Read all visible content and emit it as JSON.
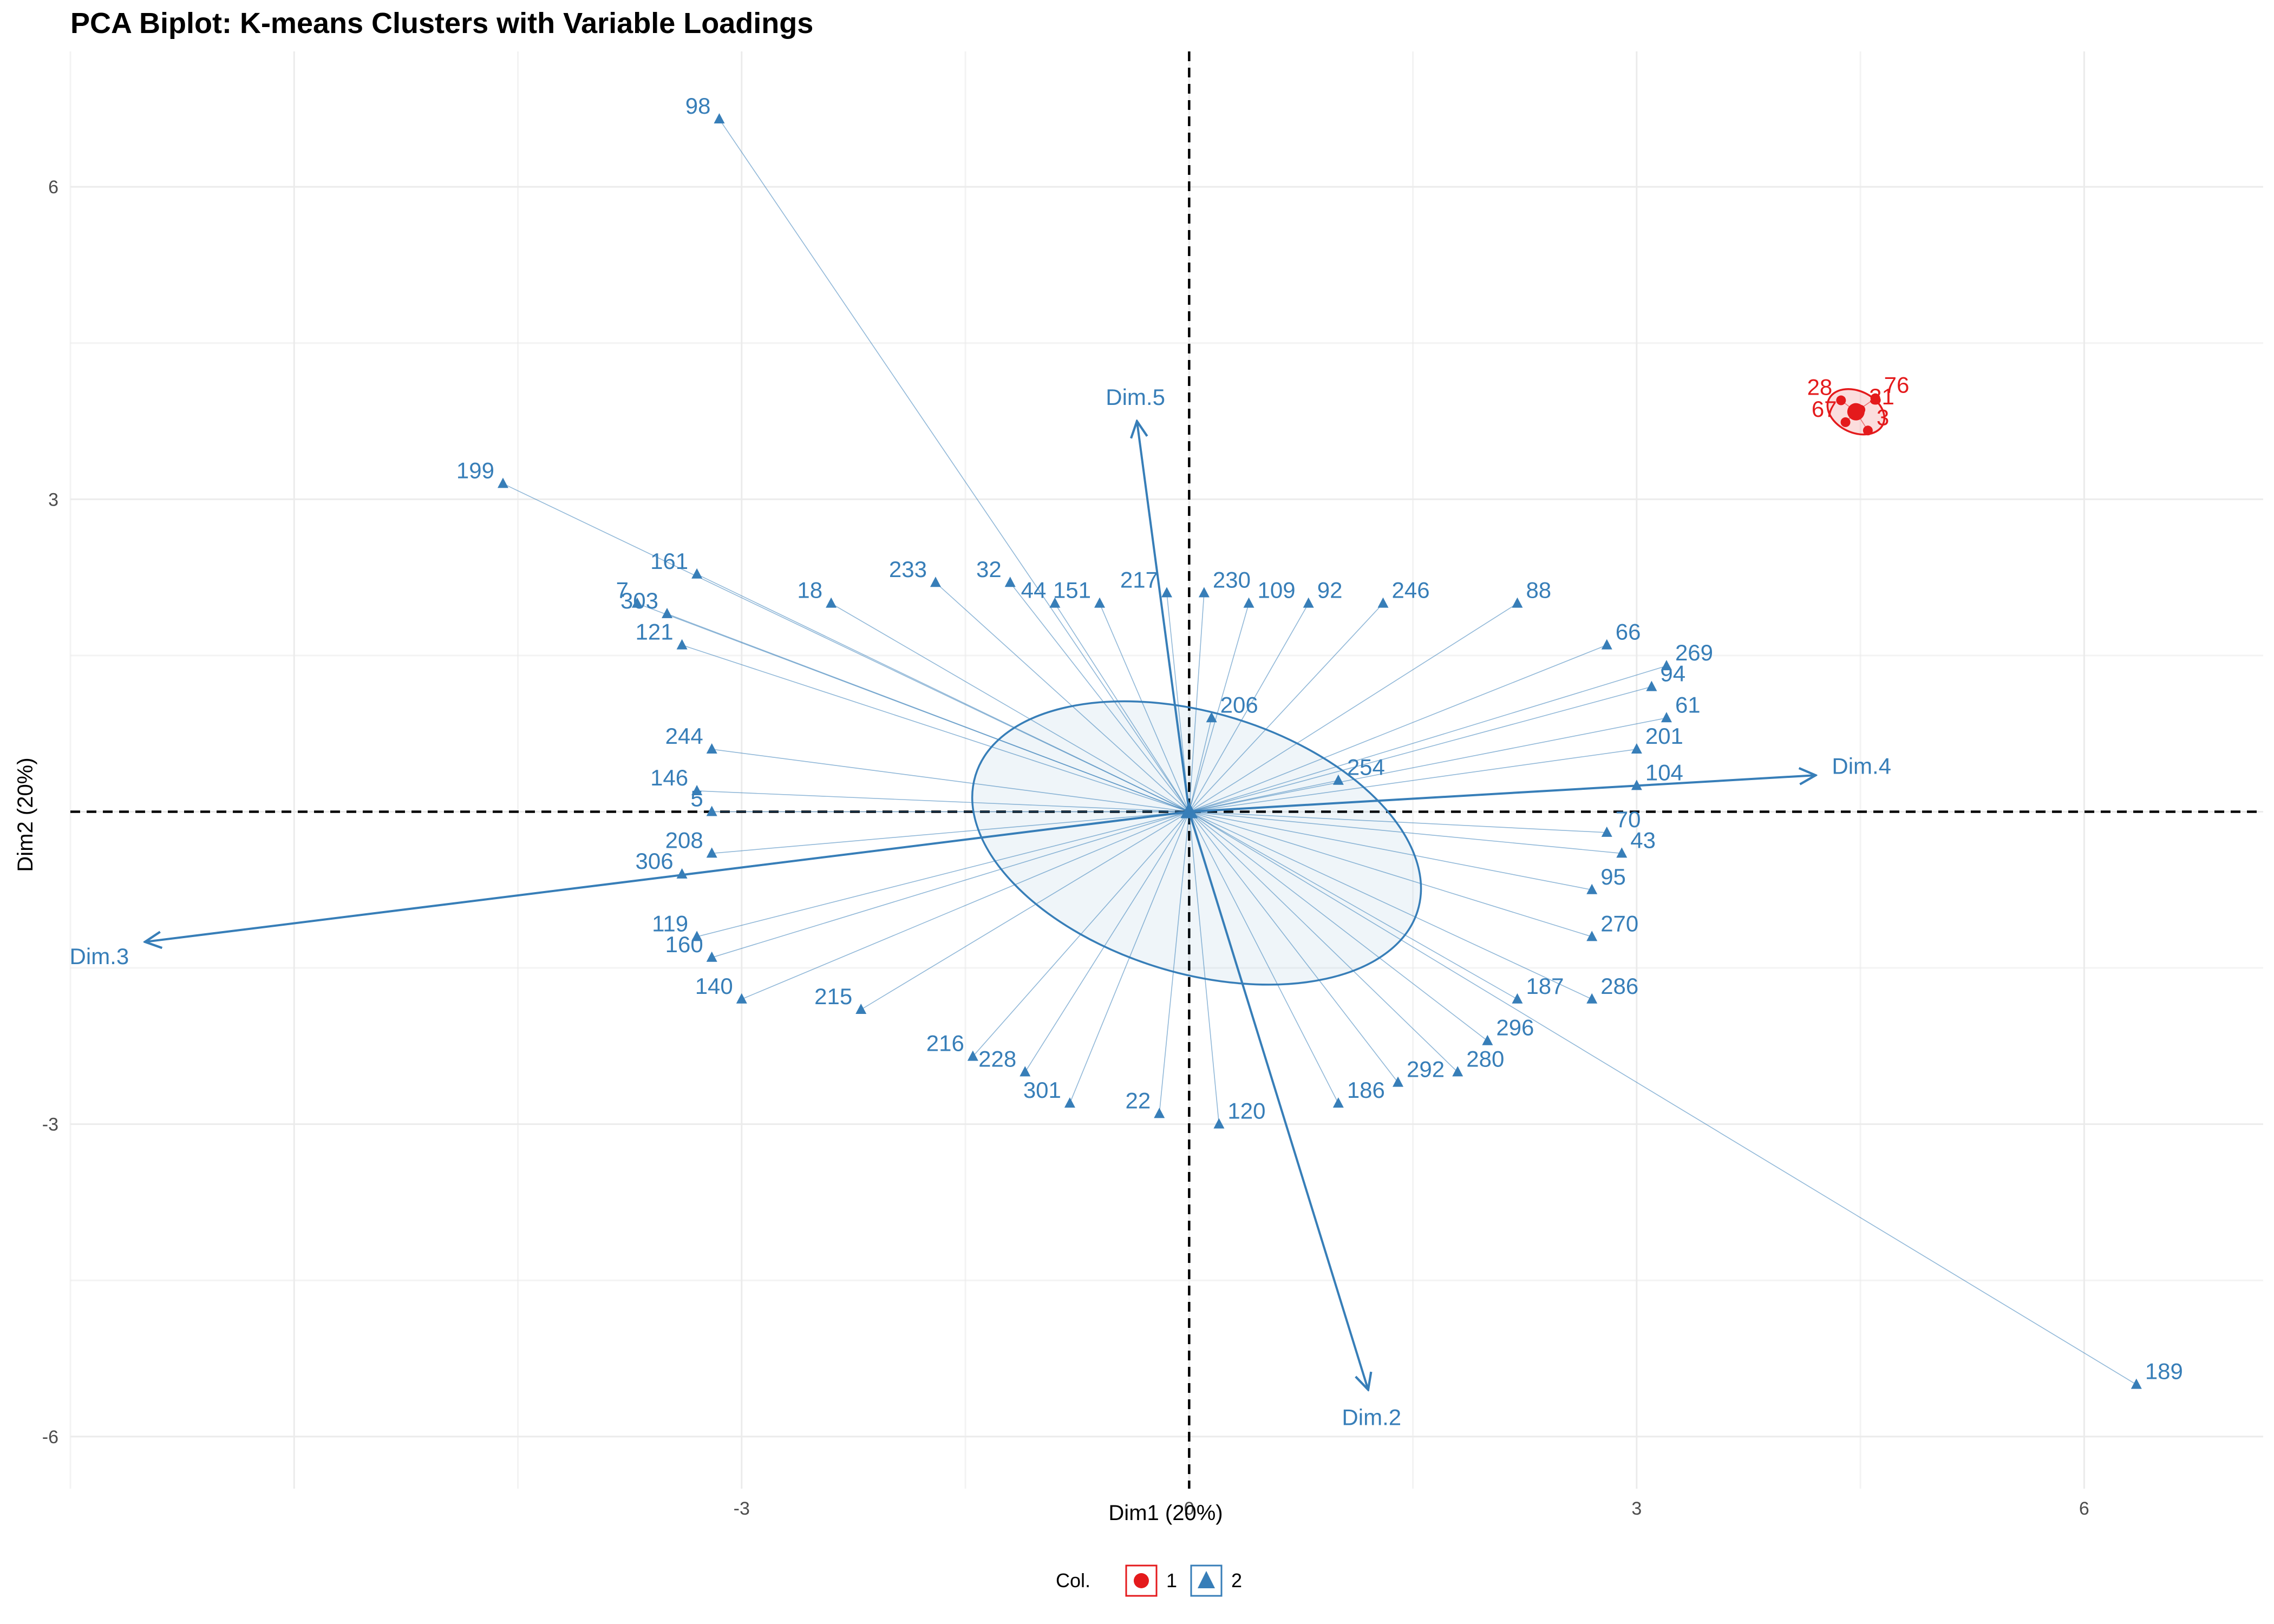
{
  "title": "PCA Biplot: K-means Clusters with Variable Loadings",
  "chart_data": {
    "type": "scatter",
    "title": "PCA Biplot: K-means Clusters with Variable Loadings",
    "xlabel": "Dim1 (20%)",
    "ylabel": "Dim2 (20%)",
    "xlim": [
      -7.5,
      7.2
    ],
    "ylim": [
      -6.5,
      7.3
    ],
    "xticks": [
      -3,
      0,
      3,
      6
    ],
    "yticks": [
      -6,
      -3,
      3,
      6
    ],
    "grid": true,
    "reference_lines": {
      "x": 0,
      "y": 0,
      "style": "dashed"
    },
    "colors": {
      "cluster1": "#e41a1c",
      "cluster2": "#377eb8"
    },
    "legend": {
      "title": "Col.",
      "position": "bottom",
      "entries": [
        "1",
        "2"
      ]
    },
    "loadings": [
      {
        "label": "Dim.5",
        "x": -0.35,
        "y": 3.75
      },
      {
        "label": "Dim.4",
        "x": 4.2,
        "y": 0.35
      },
      {
        "label": "Dim.3",
        "x": -7.0,
        "y": -1.25
      },
      {
        "label": "Dim.2",
        "x": 1.2,
        "y": -5.55
      }
    ],
    "clusters": [
      {
        "name": "1",
        "centroid": [
          4.47,
          3.84
        ],
        "points": [
          {
            "label": "28",
            "x": 4.37,
            "y": 3.95
          },
          {
            "label": "76",
            "x": 4.6,
            "y": 3.97
          },
          {
            "label": "67",
            "x": 4.4,
            "y": 3.74
          },
          {
            "label": "3",
            "x": 4.55,
            "y": 3.66
          },
          {
            "label": "31",
            "x": 4.5,
            "y": 3.86
          }
        ]
      },
      {
        "name": "2",
        "centroid": [
          0,
          0
        ],
        "points": [
          {
            "label": "98",
            "x": -3.15,
            "y": 6.65
          },
          {
            "label": "199",
            "x": -4.6,
            "y": 3.15
          },
          {
            "label": "189",
            "x": 6.35,
            "y": -5.5
          },
          {
            "label": "161",
            "x": -3.3,
            "y": 2.28
          },
          {
            "label": "303",
            "x": -3.5,
            "y": 1.9
          },
          {
            "label": "7",
            "x": -3.7,
            "y": 2.0
          },
          {
            "label": "18",
            "x": -2.4,
            "y": 2.0
          },
          {
            "label": "233",
            "x": -1.7,
            "y": 2.2
          },
          {
            "label": "32",
            "x": -1.2,
            "y": 2.2
          },
          {
            "label": "44",
            "x": -0.9,
            "y": 2.0
          },
          {
            "label": "151",
            "x": -0.6,
            "y": 2.0
          },
          {
            "label": "217",
            "x": -0.15,
            "y": 2.1
          },
          {
            "label": "230",
            "x": 0.1,
            "y": 2.1
          },
          {
            "label": "109",
            "x": 0.4,
            "y": 2.0
          },
          {
            "label": "92",
            "x": 0.8,
            "y": 2.0
          },
          {
            "label": "246",
            "x": 1.3,
            "y": 2.0
          },
          {
            "label": "88",
            "x": 2.2,
            "y": 2.0
          },
          {
            "label": "66",
            "x": 2.8,
            "y": 1.6
          },
          {
            "label": "269",
            "x": 3.2,
            "y": 1.4
          },
          {
            "label": "94",
            "x": 3.1,
            "y": 1.2
          },
          {
            "label": "61",
            "x": 3.2,
            "y": 0.9
          },
          {
            "label": "201",
            "x": 3.0,
            "y": 0.6
          },
          {
            "label": "104",
            "x": 3.0,
            "y": 0.25
          },
          {
            "label": "70",
            "x": 2.8,
            "y": -0.2
          },
          {
            "label": "43",
            "x": 2.9,
            "y": -0.4
          },
          {
            "label": "95",
            "x": 2.7,
            "y": -0.75
          },
          {
            "label": "270",
            "x": 2.7,
            "y": -1.2
          },
          {
            "label": "286",
            "x": 2.7,
            "y": -1.8
          },
          {
            "label": "187",
            "x": 2.2,
            "y": -1.8
          },
          {
            "label": "296",
            "x": 2.0,
            "y": -2.2
          },
          {
            "label": "280",
            "x": 1.8,
            "y": -2.5
          },
          {
            "label": "292",
            "x": 1.4,
            "y": -2.6
          },
          {
            "label": "186",
            "x": 1.0,
            "y": -2.8
          },
          {
            "label": "120",
            "x": 0.2,
            "y": -3.0
          },
          {
            "label": "22",
            "x": -0.2,
            "y": -2.9
          },
          {
            "label": "301",
            "x": -0.8,
            "y": -2.8
          },
          {
            "label": "228",
            "x": -1.1,
            "y": -2.5
          },
          {
            "label": "216",
            "x": -1.45,
            "y": -2.35
          },
          {
            "label": "215",
            "x": -2.2,
            "y": -1.9
          },
          {
            "label": "140",
            "x": -3.0,
            "y": -1.8
          },
          {
            "label": "160",
            "x": -3.2,
            "y": -1.4
          },
          {
            "label": "119",
            "x": -3.3,
            "y": -1.2
          },
          {
            "label": "306",
            "x": -3.4,
            "y": -0.6
          },
          {
            "label": "208",
            "x": -3.2,
            "y": -0.4
          },
          {
            "label": "146",
            "x": -3.3,
            "y": 0.2
          },
          {
            "label": "5",
            "x": -3.2,
            "y": 0.0
          },
          {
            "label": "244",
            "x": -3.2,
            "y": 0.6
          },
          {
            "label": "121",
            "x": -3.4,
            "y": 1.6
          },
          {
            "label": "206",
            "x": 0.15,
            "y": 0.9
          },
          {
            "label": "254",
            "x": 1.0,
            "y": 0.3
          }
        ]
      }
    ]
  }
}
